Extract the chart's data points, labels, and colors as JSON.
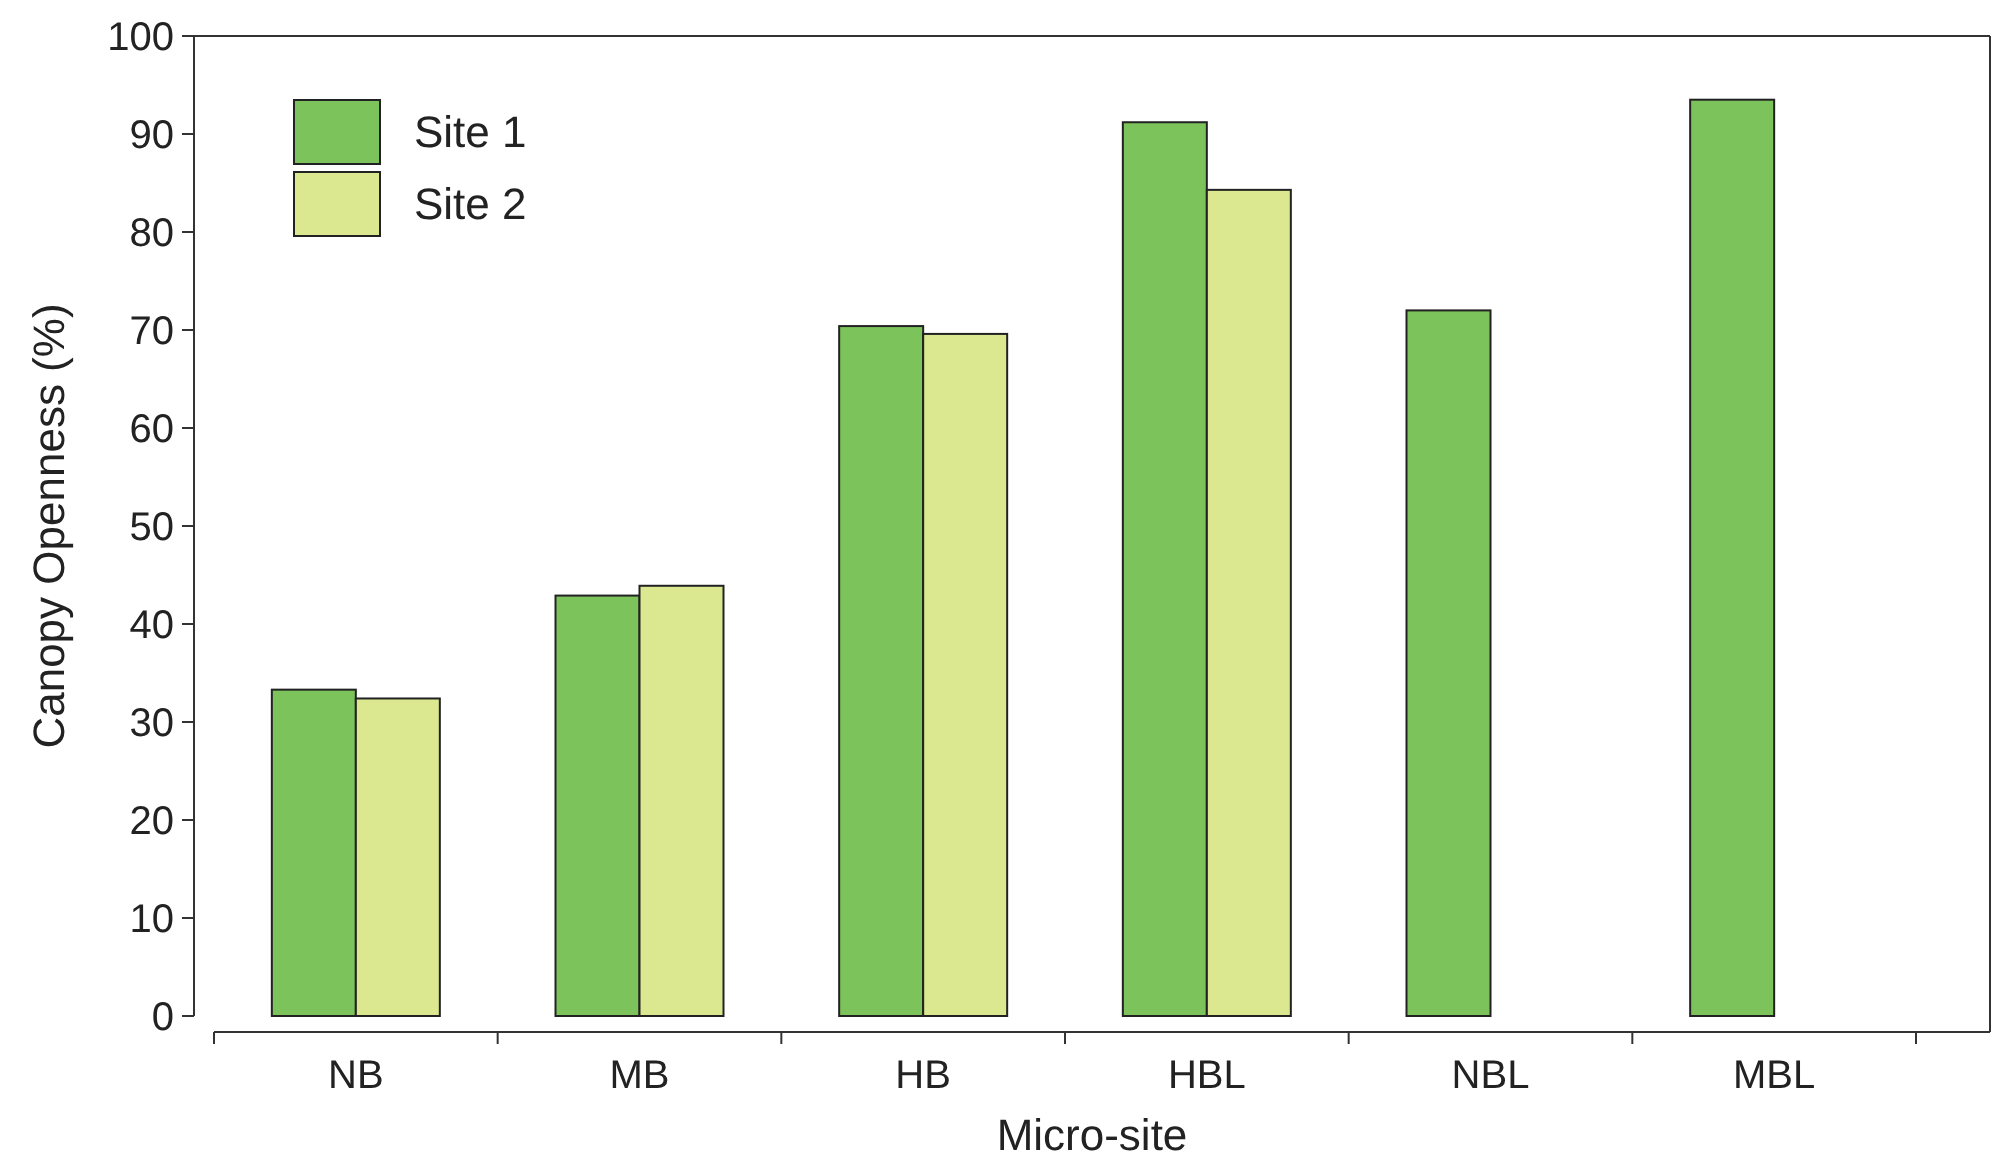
{
  "chart_data": {
    "type": "bar",
    "xlabel": "Micro-site",
    "ylabel": "Canopy Openness (%)",
    "categories": [
      "NB",
      "MB",
      "HB",
      "HBL",
      "NBL",
      "MBL"
    ],
    "series": [
      {
        "name": "Site 1",
        "color": "#7dc35b",
        "values": [
          33.3,
          42.9,
          70.4,
          91.2,
          72.0,
          93.5
        ]
      },
      {
        "name": "Site 2",
        "color": "#dbe88f",
        "values": [
          32.4,
          43.9,
          69.6,
          84.3,
          null,
          null
        ]
      }
    ],
    "ylim": [
      0,
      100
    ],
    "yticks": [
      0,
      10,
      20,
      30,
      40,
      50,
      60,
      70,
      80,
      90,
      100
    ],
    "grid": false,
    "legend": "top left"
  }
}
